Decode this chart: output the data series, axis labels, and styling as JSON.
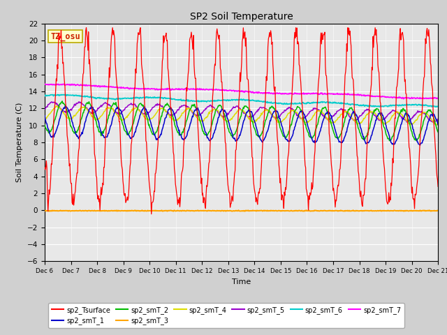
{
  "title": "SP2 Soil Temperature",
  "xlabel": "Time",
  "ylabel": "Soil Temperature (C)",
  "ylim": [
    -6,
    22
  ],
  "yticks": [
    -6,
    -4,
    -2,
    0,
    2,
    4,
    6,
    8,
    10,
    12,
    14,
    16,
    18,
    20,
    22
  ],
  "xtick_positions": [
    6,
    7,
    8,
    9,
    10,
    11,
    12,
    13,
    14,
    15,
    16,
    17,
    18,
    19,
    20,
    21
  ],
  "xtick_labels": [
    "Dec 6",
    "Dec 7",
    "Dec 8",
    "Dec 9",
    "Dec 10",
    "Dec 11",
    "Dec 12",
    "Dec 13",
    "Dec 14",
    "Dec 15",
    "Dec 16",
    "Dec 17",
    "Dec 18",
    "Dec 19",
    "Dec 20",
    "Dec 21"
  ],
  "timezone_label": "TZ_osu",
  "series_colors": {
    "sp2_Tsurface": "#ff0000",
    "sp2_smT_1": "#0000cc",
    "sp2_smT_2": "#00bb00",
    "sp2_smT_3": "#ffa500",
    "sp2_smT_4": "#dddd00",
    "sp2_smT_5": "#9900cc",
    "sp2_smT_6": "#00cccc",
    "sp2_smT_7": "#ff00ff"
  },
  "fig_facecolor": "#d0d0d0",
  "plot_facecolor": "#e8e8e8",
  "legend_ncol_row1": 6,
  "legend_ncol_row2": 2
}
